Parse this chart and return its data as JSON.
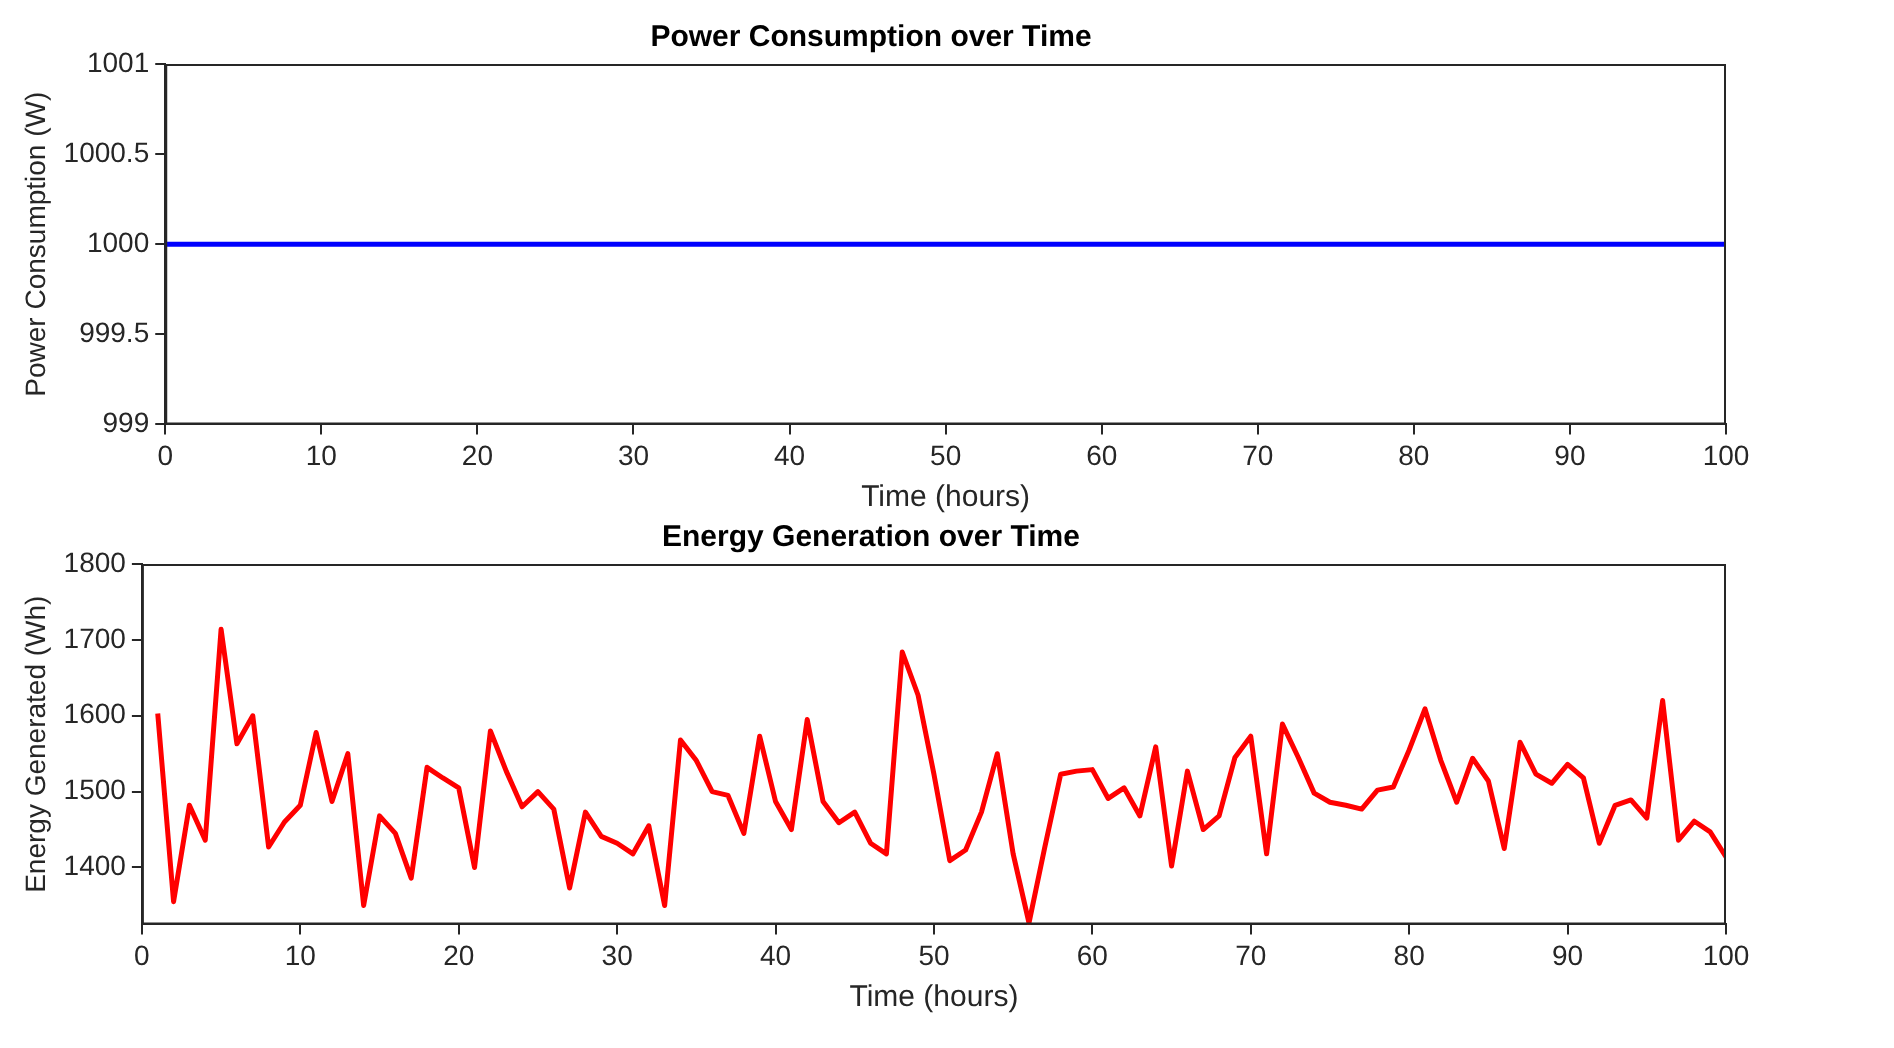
{
  "chart_data": [
    {
      "type": "line",
      "title": "Power Consumption over Time",
      "xlabel": "Time (hours)",
      "ylabel": "Power Consumption (W)",
      "x": [
        0,
        100
      ],
      "xlim": [
        0,
        100
      ],
      "xticks": [
        0,
        10,
        20,
        30,
        40,
        50,
        60,
        70,
        80,
        90,
        100
      ],
      "ylim": [
        999,
        1001
      ],
      "yticks": [
        999,
        999.5,
        1000,
        1000.5,
        1001
      ],
      "grid": false,
      "legend": false,
      "series": [
        {
          "color": "#0000ff",
          "values": [
            1000,
            1000
          ]
        }
      ]
    },
    {
      "type": "line",
      "title": "Energy Generation over Time",
      "xlabel": "Time (hours)",
      "ylabel": "Energy Generated (Wh)",
      "x": [
        1,
        2,
        3,
        4,
        5,
        6,
        7,
        8,
        9,
        10,
        11,
        12,
        13,
        14,
        15,
        16,
        17,
        18,
        19,
        20,
        21,
        22,
        23,
        24,
        25,
        26,
        27,
        28,
        29,
        30,
        31,
        32,
        33,
        34,
        35,
        36,
        37,
        38,
        39,
        40,
        41,
        42,
        43,
        44,
        45,
        46,
        47,
        48,
        49,
        50,
        51,
        52,
        53,
        54,
        55,
        56,
        57,
        58,
        59,
        60,
        61,
        62,
        63,
        64,
        65,
        66,
        67,
        68,
        69,
        70,
        71,
        72,
        73,
        74,
        75,
        76,
        77,
        78,
        79,
        80,
        81,
        82,
        83,
        84,
        85,
        86,
        87,
        88,
        89,
        90,
        91,
        92,
        93,
        94,
        95,
        96,
        97,
        98,
        99,
        100
      ],
      "xlim": [
        0,
        100
      ],
      "xticks": [
        0,
        10,
        20,
        30,
        40,
        50,
        60,
        70,
        80,
        90,
        100
      ],
      "ylim": [
        1325,
        1800
      ],
      "yticks": [
        1400,
        1500,
        1600,
        1700,
        1800
      ],
      "grid": false,
      "legend": false,
      "series": [
        {
          "color": "#ff0000",
          "values": [
            1603,
            1355,
            1482,
            1436,
            1714,
            1563,
            1600,
            1427,
            1460,
            1482,
            1578,
            1487,
            1550,
            1350,
            1468,
            1445,
            1386,
            1532,
            1518,
            1505,
            1400,
            1580,
            1527,
            1480,
            1500,
            1477,
            1373,
            1473,
            1441,
            1432,
            1418,
            1455,
            1350,
            1568,
            1541,
            1500,
            1495,
            1445,
            1573,
            1487,
            1450,
            1595,
            1487,
            1459,
            1473,
            1432,
            1418,
            1684,
            1627,
            1523,
            1409,
            1423,
            1473,
            1550,
            1418,
            1327,
            1427,
            1523,
            1527,
            1529,
            1491,
            1505,
            1468,
            1559,
            1402,
            1527,
            1450,
            1468,
            1545,
            1573,
            1418,
            1589,
            1545,
            1498,
            1486,
            1482,
            1477,
            1502,
            1506,
            1555,
            1609,
            1541,
            1486,
            1544,
            1514,
            1425,
            1565,
            1523,
            1511,
            1536,
            1518,
            1432,
            1482,
            1489,
            1465,
            1620,
            1436,
            1461,
            1447,
            1414
          ]
        }
      ]
    }
  ]
}
